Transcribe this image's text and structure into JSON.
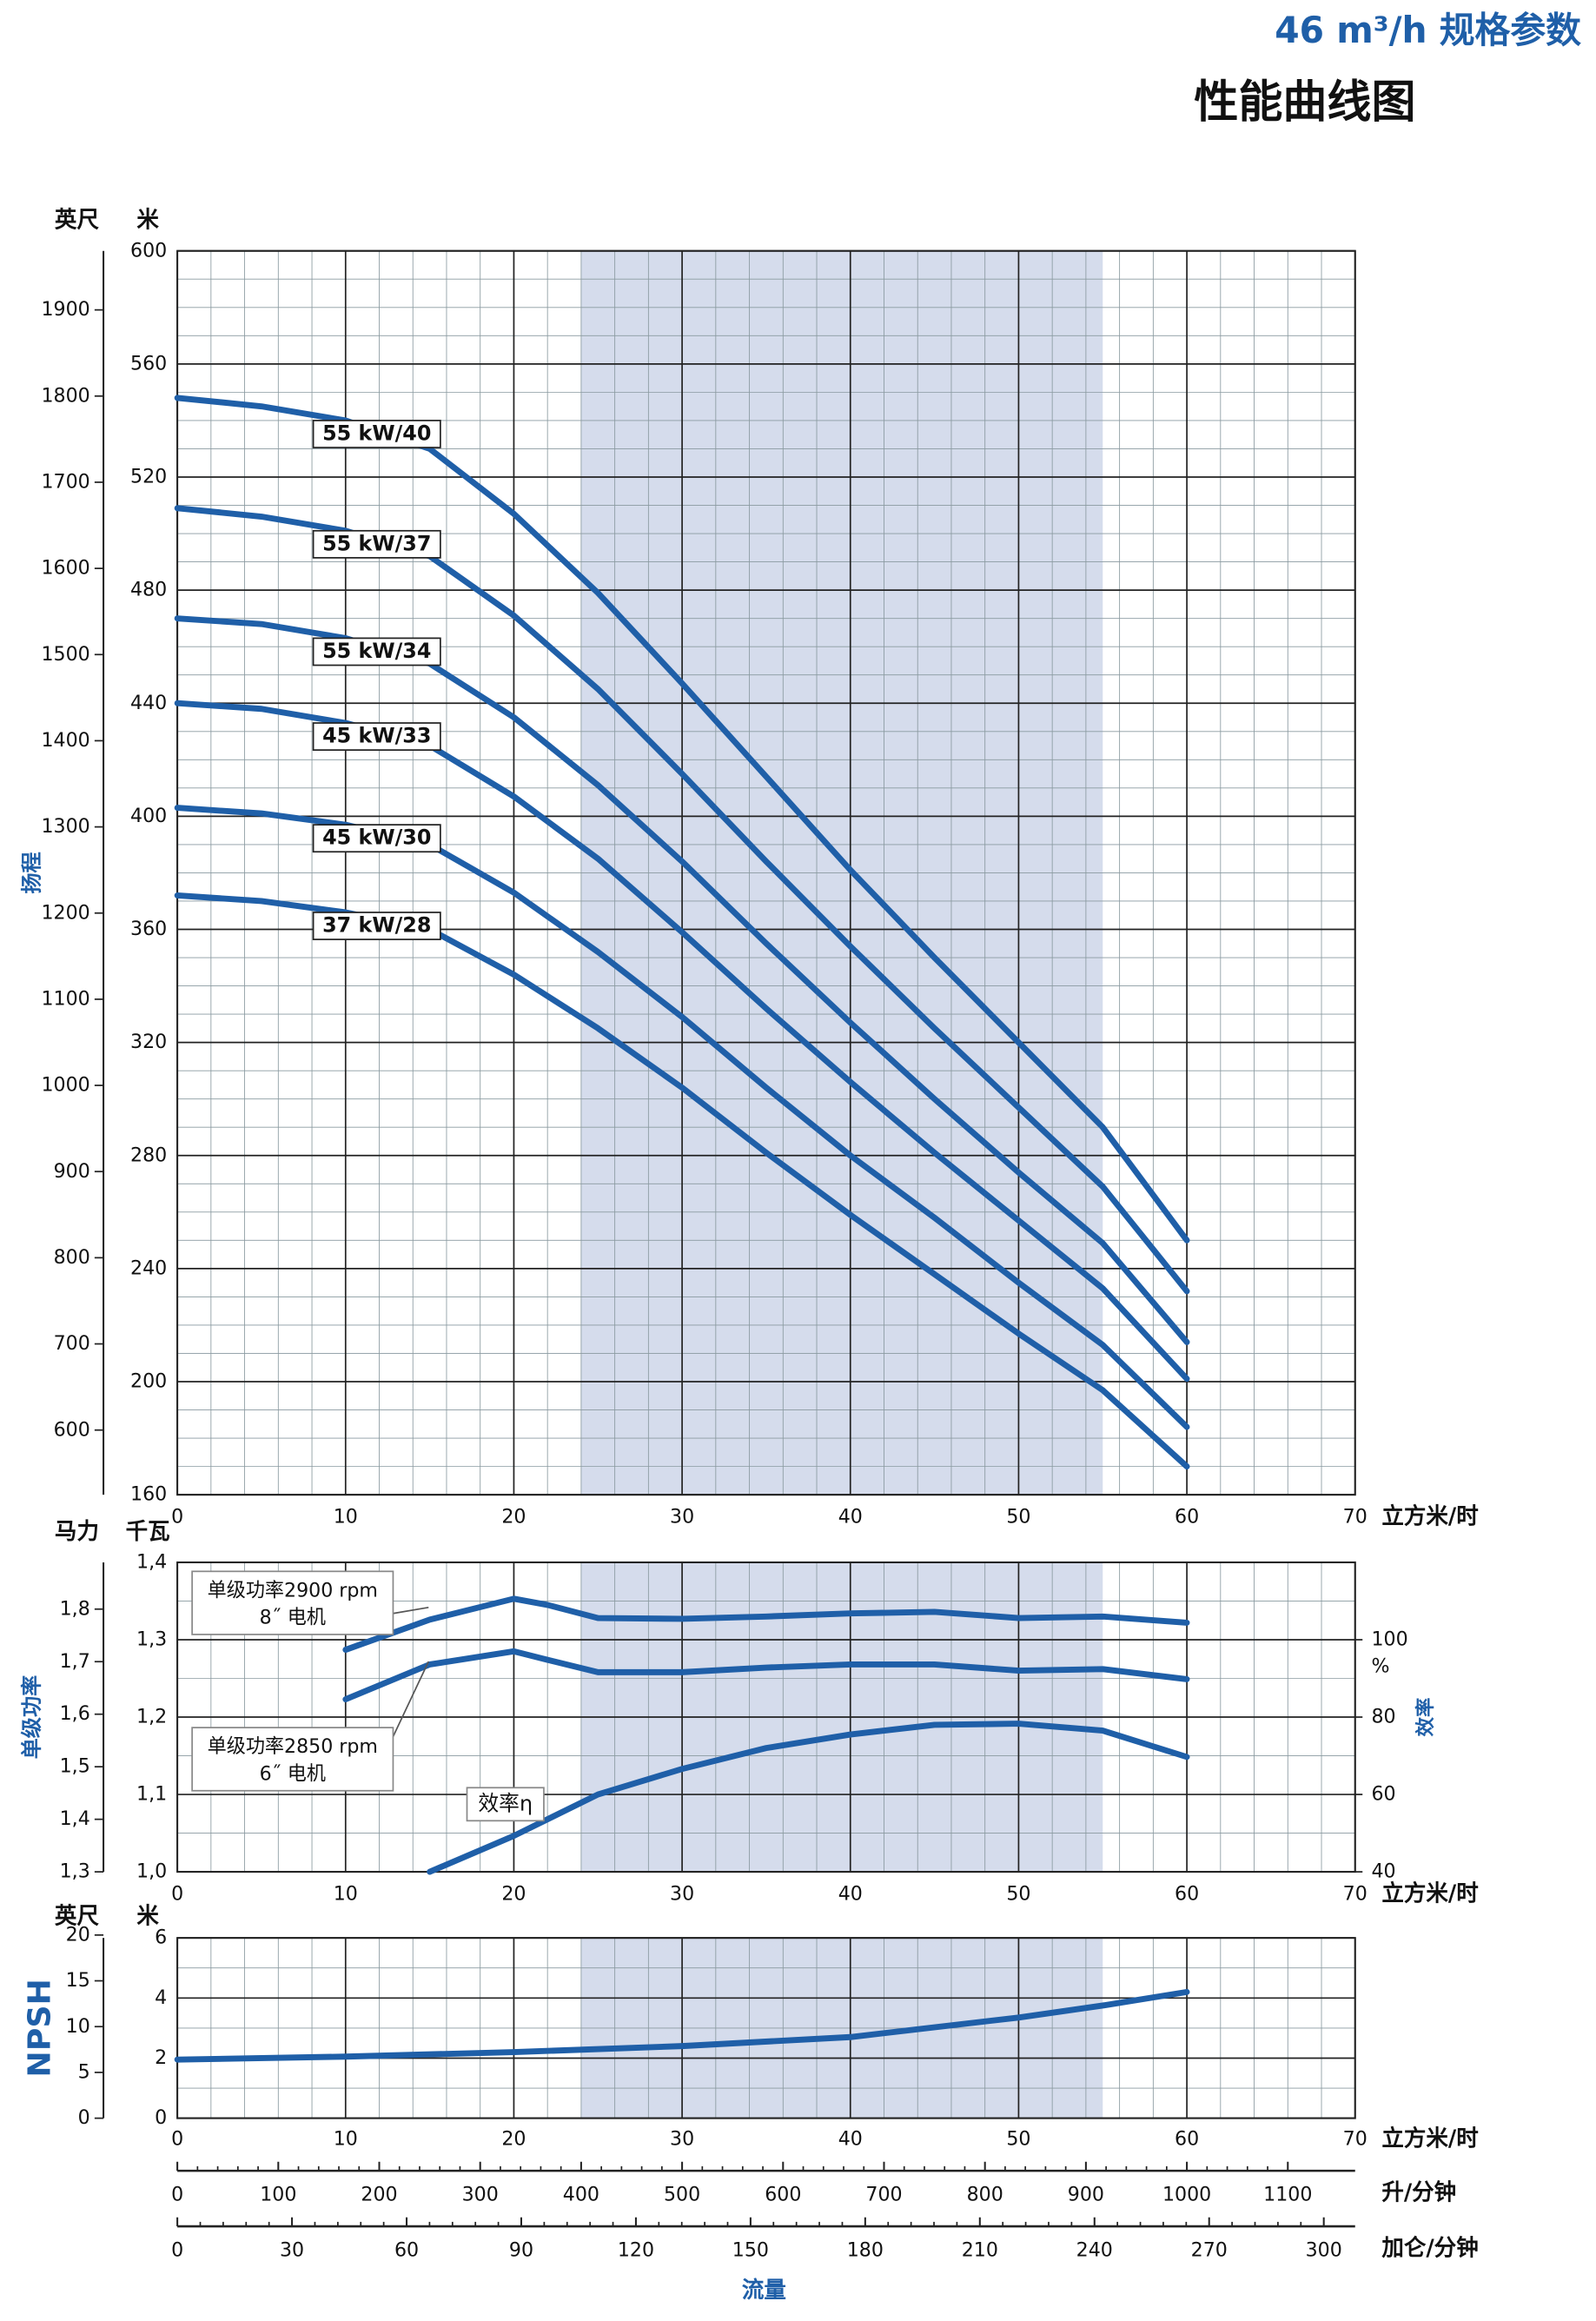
{
  "title": "46 m³/h 规格参数",
  "subtitle": "性能曲线图",
  "chart_data": [
    {
      "type": "line",
      "ylabel": "扬程",
      "y_unit": "米",
      "y_alt_unit": "英尺",
      "x_unit": "立方米/时",
      "xlim": [
        0,
        70
      ],
      "xticks": [
        0,
        10,
        20,
        30,
        40,
        50,
        60,
        70
      ],
      "ylim": [
        160,
        600
      ],
      "yticks": [
        160,
        200,
        240,
        280,
        320,
        360,
        400,
        440,
        480,
        520,
        560,
        600
      ],
      "y_alt_lim": [
        524.93,
        1968.5
      ],
      "y_alt_ticks": [
        600,
        700,
        800,
        900,
        1000,
        1100,
        1200,
        1300,
        1400,
        1500,
        1600,
        1700,
        1800,
        1900
      ],
      "highlight": [
        24,
        55
      ],
      "highlight_color": "#d5dcec",
      "grid": true,
      "x": [
        0,
        5,
        10,
        15,
        20,
        25,
        30,
        35,
        40,
        45,
        50,
        55,
        60
      ],
      "series": [
        {
          "name": "55 kW/40",
          "color": "#1f5fa8",
          "values": [
            548,
            545,
            540,
            530,
            507,
            479,
            447,
            414,
            381,
            350,
            320,
            290,
            250
          ]
        },
        {
          "name": "55 kW/37",
          "color": "#1f5fa8",
          "values": [
            509,
            506,
            501,
            492,
            471,
            445,
            415,
            384,
            354,
            325,
            297,
            269,
            232
          ]
        },
        {
          "name": "55 kW/34",
          "color": "#1f5fa8",
          "values": [
            470,
            468,
            463,
            454,
            435,
            411,
            384,
            355,
            327,
            300,
            274,
            249,
            214
          ]
        },
        {
          "name": "45 kW/33",
          "color": "#1f5fa8",
          "values": [
            440,
            438,
            433,
            425,
            407,
            385,
            359,
            332,
            306,
            281,
            257,
            233,
            201
          ]
        },
        {
          "name": "45 kW/30",
          "color": "#1f5fa8",
          "values": [
            403,
            401,
            397,
            390,
            373,
            352,
            329,
            304,
            280,
            258,
            235,
            213,
            184
          ]
        },
        {
          "name": "37 kW/28",
          "color": "#1f5fa8",
          "values": [
            372,
            370,
            366,
            360,
            344,
            325,
            304,
            281,
            259,
            238,
            217,
            197,
            170
          ]
        }
      ]
    },
    {
      "type": "line",
      "ylabel": "单级功率",
      "y_unit": "千瓦",
      "y_alt_unit": "马力",
      "x_unit": "立方米/时",
      "y2label": "效率",
      "y2_unit": "%",
      "xlim": [
        0,
        70
      ],
      "xticks": [
        0,
        10,
        20,
        30,
        40,
        50,
        60,
        70
      ],
      "ylim": [
        1.0,
        1.4
      ],
      "yticks": [
        {
          "value": 1.0,
          "label": "1,0"
        },
        {
          "value": 1.1,
          "label": "1,1"
        },
        {
          "value": 1.2,
          "label": "1,2"
        },
        {
          "value": 1.3,
          "label": "1,3"
        },
        {
          "value": 1.4,
          "label": "1,4"
        }
      ],
      "y_alt_lim": [
        1.3,
        1.889
      ],
      "y_alt_ticks": [
        {
          "value": 1.3,
          "label": "1,3"
        },
        {
          "value": 1.4,
          "label": "1,4"
        },
        {
          "value": 1.5,
          "label": "1,5"
        },
        {
          "value": 1.6,
          "label": "1,6"
        },
        {
          "value": 1.7,
          "label": "1,7"
        },
        {
          "value": 1.8,
          "label": "1,8"
        }
      ],
      "y2lim": [
        40,
        120
      ],
      "y2ticks": [
        40,
        60,
        80,
        100
      ],
      "highlight": [
        24,
        55
      ],
      "highlight_color": "#d5dcec",
      "grid": true,
      "series": [
        {
          "name": "单级功率2900 rpm",
          "note": "8˝ 电机",
          "color": "#1f5fa8",
          "x": [
            10,
            15,
            20,
            22,
            25,
            30,
            35,
            40,
            45,
            50,
            55,
            60
          ],
          "values": [
            1.287,
            1.326,
            1.353,
            1.345,
            1.328,
            1.327,
            1.33,
            1.334,
            1.336,
            1.328,
            1.33,
            1.322
          ]
        },
        {
          "name": "单级功率2850 rpm",
          "note": "6˝ 电机",
          "color": "#1f5fa8",
          "x": [
            10,
            15,
            20,
            22,
            25,
            30,
            35,
            40,
            45,
            50,
            55,
            60
          ],
          "values": [
            1.223,
            1.268,
            1.285,
            1.274,
            1.258,
            1.258,
            1.264,
            1.268,
            1.268,
            1.26,
            1.262,
            1.249
          ]
        },
        {
          "name": "效率η",
          "color": "#1f5fa8",
          "axis": "y2",
          "x": [
            15,
            20,
            25,
            30,
            35,
            40,
            45,
            50,
            55,
            60
          ],
          "values": [
            40,
            49.3,
            60,
            66.6,
            72,
            75.5,
            78,
            78.3,
            76.5,
            69.7
          ]
        }
      ]
    },
    {
      "type": "line",
      "ylabel": "NPSH",
      "y_unit": "米",
      "y_alt_unit": "英尺",
      "x_unit": "立方米/时",
      "xlim": [
        0,
        70
      ],
      "xticks": [
        0,
        10,
        20,
        30,
        40,
        50,
        60,
        70
      ],
      "ylim": [
        0,
        6
      ],
      "yticks": [
        0,
        2,
        4,
        6
      ],
      "y_alt_lim": [
        0,
        19.685
      ],
      "y_alt_ticks": [
        0,
        5,
        10,
        15,
        20
      ],
      "highlight": [
        24,
        55
      ],
      "highlight_color": "#d5dcec",
      "grid": true,
      "series": [
        {
          "name": "NPSH",
          "color": "#1f5fa8",
          "x": [
            0,
            10,
            20,
            30,
            40,
            50,
            55,
            60
          ],
          "values": [
            1.95,
            2.05,
            2.2,
            2.4,
            2.7,
            3.35,
            3.75,
            4.2
          ]
        }
      ]
    },
    {
      "type": "axis",
      "x_unit": "升/分钟",
      "xlim": [
        0,
        1166.67
      ],
      "xticks": [
        0,
        100,
        200,
        300,
        400,
        500,
        600,
        700,
        800,
        900,
        1000,
        1100
      ]
    },
    {
      "type": "axis",
      "x_unit": "加仑/分钟",
      "xlim": [
        0,
        308.2
      ],
      "xticks": [
        0,
        30,
        60,
        90,
        120,
        150,
        180,
        210,
        240,
        270,
        300
      ],
      "xlabel": "流量"
    }
  ]
}
